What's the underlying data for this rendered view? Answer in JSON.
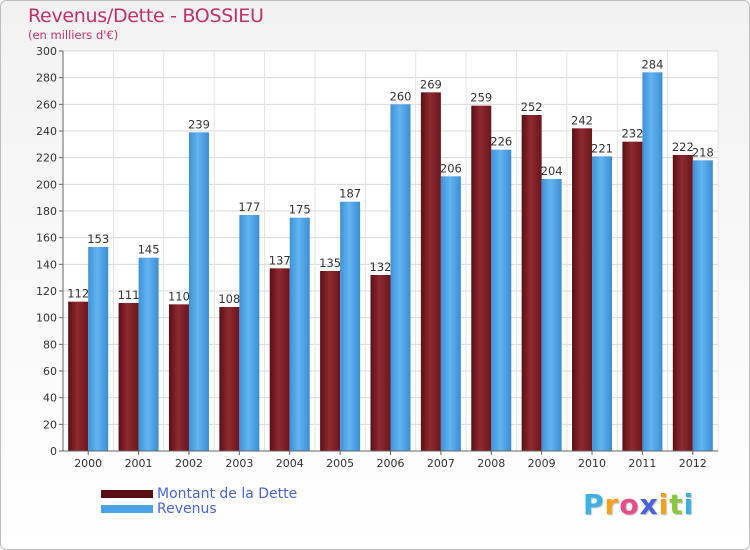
{
  "title": "Revenus/Dette - BOSSIEU",
  "subtitle": "(en milliers d'€)",
  "logo": {
    "letters": [
      "P",
      "r",
      "o",
      "x",
      "i",
      "t",
      "i"
    ],
    "colors": [
      "#3cb0e0",
      "#f5a01a",
      "#e84c8a",
      "#4a63d8",
      "#f5a01a",
      "#8cc63f",
      "#3cb0e0"
    ]
  },
  "chart_data": {
    "type": "bar",
    "title": "Revenus/Dette - BOSSIEU",
    "subtitle": "(en milliers d'€)",
    "categories": [
      "2000",
      "2001",
      "2002",
      "2003",
      "2004",
      "2005",
      "2006",
      "2007",
      "2008",
      "2009",
      "2010",
      "2011",
      "2012"
    ],
    "series": [
      {
        "name": "Montant de la Dette",
        "color": "#7a1e22",
        "values": [
          112,
          111,
          110,
          108,
          137,
          135,
          132,
          269,
          259,
          252,
          242,
          232,
          222
        ]
      },
      {
        "name": "Revenus",
        "color": "#4aa3e6",
        "values": [
          153,
          145,
          239,
          177,
          175,
          187,
          260,
          206,
          226,
          204,
          221,
          284,
          218
        ]
      }
    ],
    "ylim": [
      0,
      300
    ],
    "yticks": [
      0,
      20,
      40,
      60,
      80,
      100,
      120,
      140,
      160,
      180,
      200,
      220,
      240,
      260,
      280,
      300
    ],
    "grid": true,
    "legend": "bottom-left"
  }
}
